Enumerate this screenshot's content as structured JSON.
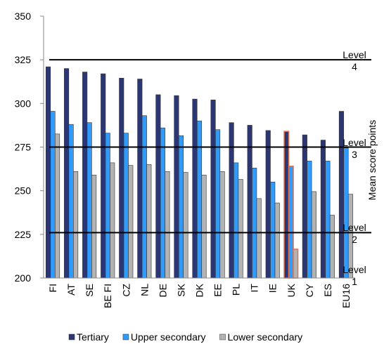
{
  "chart_data": {
    "type": "bar",
    "categories": [
      "FI",
      "AT",
      "SE",
      "BE FI",
      "CZ",
      "NL",
      "DE",
      "SK",
      "DK",
      "EE",
      "PL",
      "IT",
      "IE",
      "UK",
      "CY",
      "ES",
      "EU16"
    ],
    "series": [
      {
        "name": "Tertiary",
        "color": "#2b3672",
        "values": [
          321,
          320,
          318,
          317,
          314.5,
          314,
          305,
          304.5,
          302.5,
          302,
          289,
          287.5,
          284.5,
          284,
          282,
          279,
          295.5
        ]
      },
      {
        "name": "Upper secondary",
        "color": "#2f9bff",
        "values": [
          295.5,
          288,
          289,
          283,
          283,
          293,
          286,
          281.5,
          290,
          285,
          266,
          263,
          255,
          264,
          267,
          267,
          274.5
        ]
      },
      {
        "name": "Lower secondary",
        "color": "#b3b3b3",
        "values": [
          282.5,
          261,
          259,
          266,
          264.5,
          265,
          261,
          260.5,
          259,
          261,
          256.5,
          245.5,
          243,
          216.5,
          249.5,
          236,
          248
        ]
      }
    ],
    "highlight": "UK",
    "highlight_color": "#e0704a",
    "ylim": [
      200,
      350
    ],
    "yticks": [
      200,
      225,
      250,
      275,
      300,
      325,
      350
    ],
    "y_axis_label": "Mean score points",
    "reference_lines": [
      {
        "value": 325,
        "label": "Level 4"
      },
      {
        "value": 275,
        "label": "Level 3"
      },
      {
        "value": 226,
        "label": "Level 2"
      }
    ],
    "bottom_label": "Level 1"
  }
}
